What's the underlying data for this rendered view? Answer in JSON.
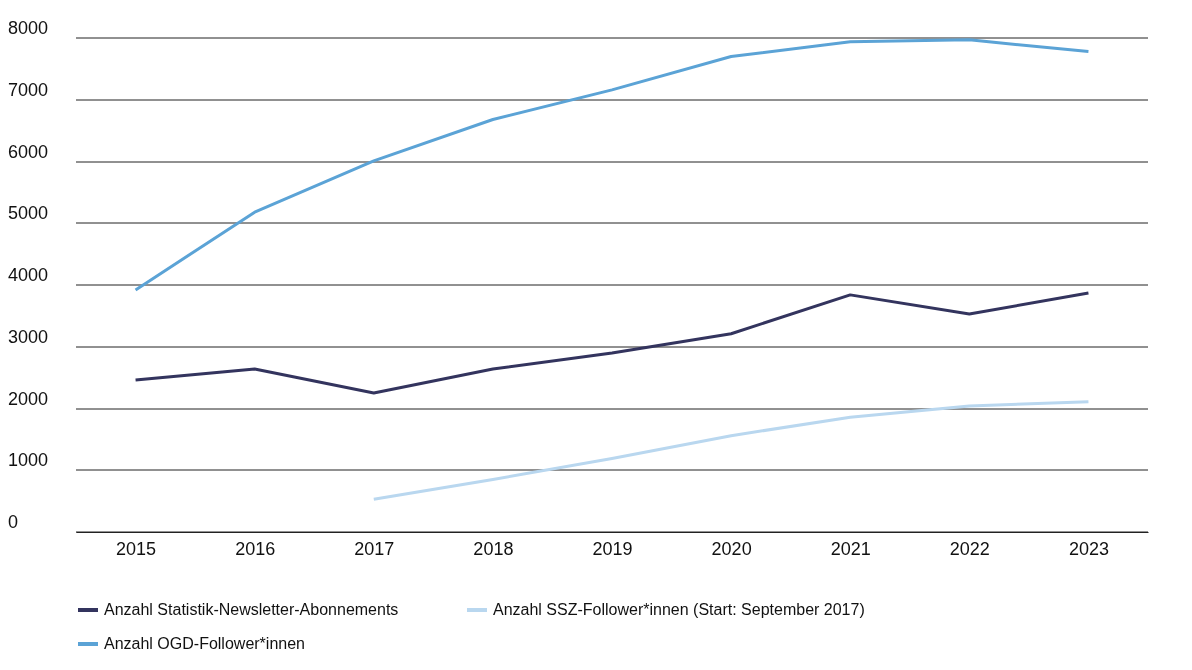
{
  "chart_data": {
    "type": "line",
    "categories": [
      "2015",
      "2016",
      "2017",
      "2018",
      "2019",
      "2020",
      "2021",
      "2022",
      "2023"
    ],
    "series": [
      {
        "name": "Anzahl Statistik-Newsletter-Abonnements",
        "color": "#33345e",
        "values": [
          2460,
          2640,
          2250,
          2640,
          2900,
          3210,
          3840,
          3530,
          3870
        ]
      },
      {
        "name": "Anzahl SSZ-Follower*innen (Start: September 2017)",
        "color": "#b9d7ef",
        "values": [
          null,
          null,
          530,
          850,
          1190,
          1560,
          1860,
          2040,
          2110
        ]
      },
      {
        "name": "Anzahl OGD-Follower*innen",
        "color": "#5ba3d6",
        "values": [
          3920,
          5180,
          6010,
          6680,
          7160,
          7700,
          7940,
          7970,
          7780
        ]
      }
    ],
    "ylim": [
      0,
      8000
    ],
    "yticks": [
      0,
      1000,
      2000,
      3000,
      4000,
      5000,
      6000,
      7000,
      8000
    ],
    "grid": "y",
    "legend": "bottom",
    "marker": "none",
    "line_style": "solid"
  }
}
